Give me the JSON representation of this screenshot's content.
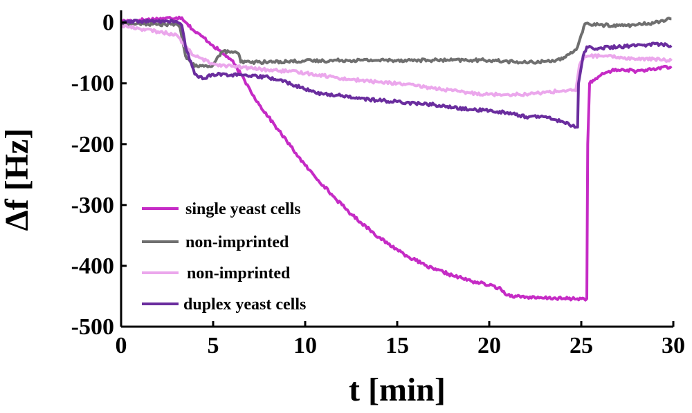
{
  "chart_data": {
    "type": "line",
    "title": "",
    "xlabel": "t [min]",
    "ylabel": "Δf [Hz]",
    "xlim": [
      0,
      30
    ],
    "ylim": [
      -500,
      20
    ],
    "xticks": [
      0,
      5,
      10,
      15,
      20,
      25,
      30
    ],
    "yticks": [
      0,
      -100,
      -200,
      -300,
      -400,
      -500
    ],
    "xtick_labels": [
      "0",
      "5",
      "10",
      "15",
      "20",
      "25",
      "30"
    ],
    "ytick_labels": [
      "0",
      "-100",
      "-200",
      "-300",
      "-400",
      "-500"
    ],
    "grid": false,
    "legend_position": "lower-left",
    "series": [
      {
        "name": "single yeast cells",
        "color": "#c52bc5",
        "x": [
          0,
          1,
          2,
          3,
          3.3,
          3.6,
          4,
          4.5,
          5,
          5.5,
          6,
          6.5,
          7,
          7.5,
          8,
          8.5,
          9,
          9.5,
          10,
          10.5,
          11,
          11.5,
          12,
          12.5,
          13,
          13.5,
          14,
          14.5,
          15,
          15.5,
          16,
          16.5,
          17,
          17.5,
          18,
          18.5,
          19,
          19.5,
          20,
          20.5,
          21,
          21.5,
          22,
          22.5,
          23,
          23.5,
          24,
          24.5,
          25,
          25.3,
          25.35,
          25.45,
          25.7,
          26,
          26.5,
          27,
          27.5,
          28,
          28.5,
          29,
          29.5,
          29.9
        ],
        "y": [
          2,
          4,
          6,
          8,
          8,
          -2,
          -15,
          -25,
          -38,
          -50,
          -62,
          -85,
          -110,
          -135,
          -155,
          -175,
          -195,
          -215,
          -235,
          -252,
          -268,
          -285,
          -300,
          -315,
          -328,
          -340,
          -353,
          -364,
          -373,
          -383,
          -391,
          -399,
          -406,
          -410,
          -416,
          -420,
          -425,
          -428,
          -432,
          -436,
          -448,
          -450,
          -451,
          -453,
          -453,
          -453,
          -454,
          -454,
          -454,
          -454,
          -200,
          -100,
          -95,
          -88,
          -80,
          -78,
          -78,
          -80,
          -78,
          -78,
          -72,
          -75
        ]
      },
      {
        "name": "non-imprinted",
        "color": "#6f6f6f",
        "x": [
          0,
          1,
          2,
          3,
          3.2,
          3.5,
          4,
          4.5,
          5,
          5.3,
          5.5,
          6,
          6.4,
          6.5,
          7,
          8,
          9,
          10,
          11,
          12,
          13,
          14,
          15,
          16,
          17,
          18,
          19,
          20,
          21,
          22,
          23,
          24,
          24.5,
          24.8,
          25,
          25.2,
          26,
          27,
          28,
          29,
          29.9
        ],
        "y": [
          -2,
          -2,
          -3,
          -3,
          -8,
          -55,
          -72,
          -72,
          -70,
          -55,
          -48,
          -48,
          -52,
          -65,
          -65,
          -65,
          -64,
          -63,
          -63,
          -62,
          -62,
          -62,
          -62,
          -62,
          -62,
          -62,
          -62,
          -62,
          -64,
          -66,
          -64,
          -60,
          -50,
          -40,
          -20,
          -2,
          -4,
          -5,
          -4,
          0,
          6
        ]
      },
      {
        "name": "non-imprinted",
        "color": "#eba7ec",
        "x": [
          0,
          1,
          2,
          3,
          3.5,
          4,
          5,
          6,
          7,
          8,
          9,
          10,
          11,
          12,
          13,
          14,
          15,
          16,
          17,
          18,
          19,
          20,
          21,
          22,
          23,
          24,
          24.7,
          24.9,
          25.2,
          25.5,
          26,
          27,
          28,
          29,
          29.9
        ],
        "y": [
          -5,
          -10,
          -15,
          -20,
          -40,
          -55,
          -68,
          -72,
          -75,
          -78,
          -80,
          -83,
          -87,
          -92,
          -95,
          -98,
          -100,
          -104,
          -108,
          -112,
          -116,
          -118,
          -118,
          -118,
          -115,
          -112,
          -112,
          -70,
          -55,
          -55,
          -55,
          -57,
          -60,
          -60,
          -63
        ]
      },
      {
        "name": "duplex yeast cells",
        "color": "#6a2d9e",
        "x": [
          0,
          1,
          2,
          3,
          3.3,
          3.5,
          4,
          4.5,
          5,
          6,
          7,
          8,
          9,
          10,
          11,
          12,
          13,
          14,
          15,
          16,
          17,
          18,
          19,
          20,
          21,
          22,
          23,
          24,
          24.5,
          24.8,
          24.85,
          25.1,
          25.3,
          25.6,
          26,
          27,
          28,
          29,
          29.9
        ],
        "y": [
          0,
          2,
          2,
          2,
          -5,
          -40,
          -85,
          -92,
          -85,
          -86,
          -88,
          -90,
          -98,
          -110,
          -118,
          -120,
          -125,
          -128,
          -130,
          -133,
          -135,
          -140,
          -143,
          -145,
          -148,
          -155,
          -155,
          -163,
          -170,
          -172,
          -100,
          -55,
          -40,
          -42,
          -42,
          -40,
          -38,
          -35,
          -38
        ]
      }
    ]
  }
}
